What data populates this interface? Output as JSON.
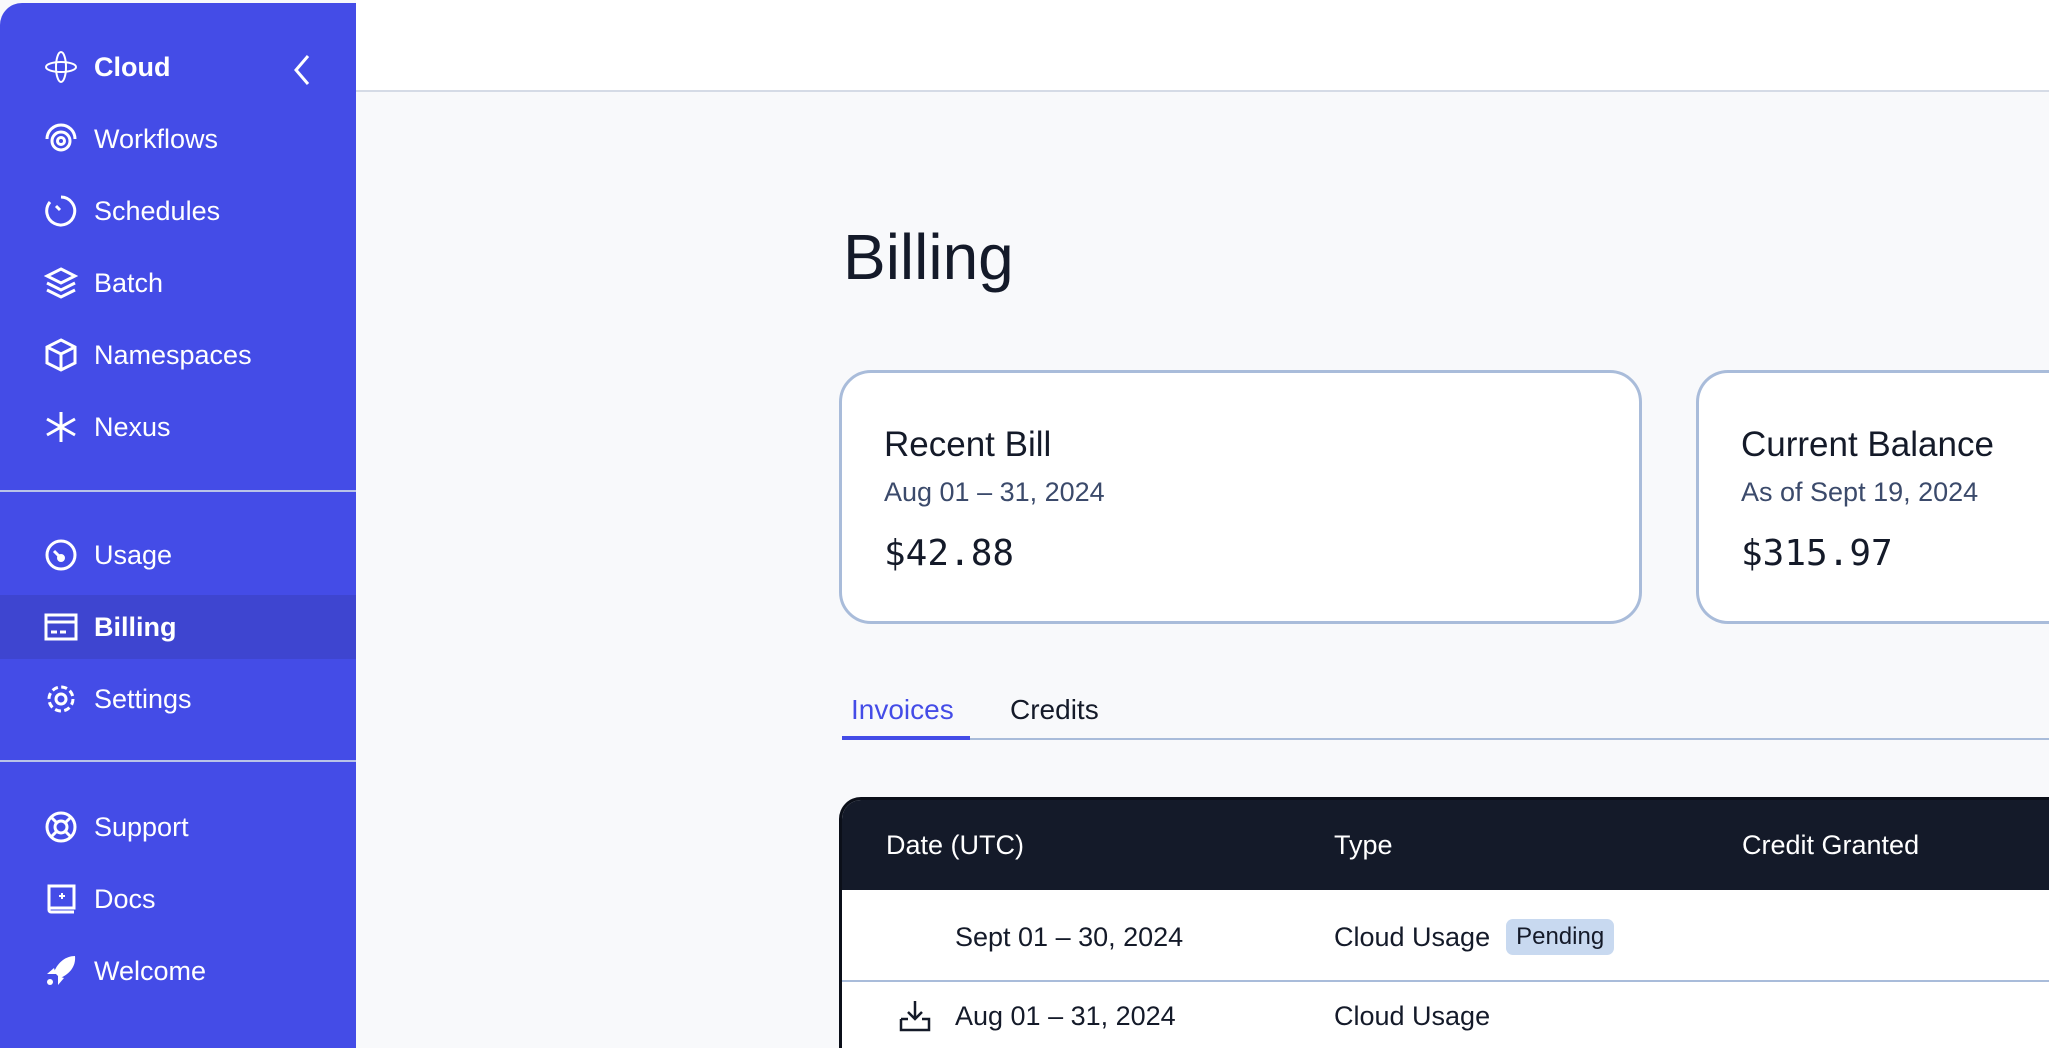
{
  "sidebar": {
    "header": {
      "label": "Cloud",
      "icon": "cloud-logo-icon",
      "collapse_icon": "chevron-left-icon"
    },
    "items": [
      {
        "label": "Workflows",
        "icon": "workflows-icon"
      },
      {
        "label": "Schedules",
        "icon": "schedules-icon"
      },
      {
        "label": "Batch",
        "icon": "layers-icon"
      },
      {
        "label": "Namespaces",
        "icon": "cube-icon"
      },
      {
        "label": "Nexus",
        "icon": "asterisk-icon"
      },
      {
        "label": "Usage",
        "icon": "gauge-icon"
      },
      {
        "label": "Billing",
        "icon": "credit-card-icon",
        "active": true
      },
      {
        "label": "Settings",
        "icon": "gear-icon"
      },
      {
        "label": "Support",
        "icon": "lifebuoy-icon"
      },
      {
        "label": "Docs",
        "icon": "book-icon"
      },
      {
        "label": "Welcome",
        "icon": "rocket-icon"
      }
    ],
    "color": "#444CE7"
  },
  "page": {
    "title": "Billing"
  },
  "cards": [
    {
      "title": "Recent Bill",
      "subtitle": "Aug 01 – 31, 2024",
      "amount": "$42.88"
    },
    {
      "title": "Current Balance",
      "subtitle": "As of Sept 19, 2024",
      "amount": "$315.97"
    }
  ],
  "tabs": [
    {
      "label": "Invoices",
      "active": true
    },
    {
      "label": "Credits"
    }
  ],
  "table": {
    "headers": [
      "Date (UTC)",
      "Type",
      "Credit Granted"
    ],
    "rows": [
      {
        "date": "Sept 01 – 30, 2024",
        "type": "Cloud Usage",
        "badge": "Pending",
        "download": false
      },
      {
        "date": "Aug 01 – 31, 2024",
        "type": "Cloud Usage",
        "download": true
      }
    ]
  }
}
